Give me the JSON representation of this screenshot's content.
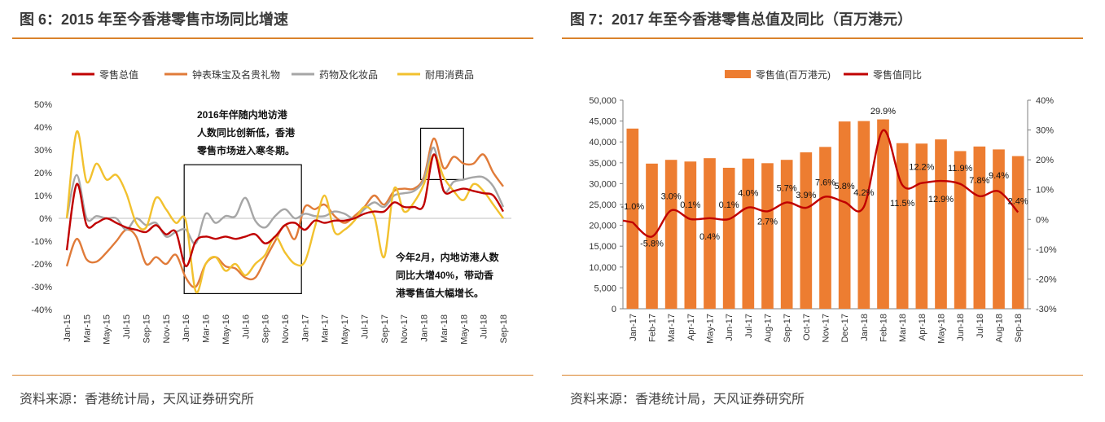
{
  "left": {
    "title": "图 6：2015 年至今香港零售市场同比增速",
    "source": "资料来源：香港统计局，天风证券研究所",
    "chart_data": {
      "type": "line",
      "title": "",
      "x": [
        "Jan-15",
        "Feb-15",
        "Mar-15",
        "Apr-15",
        "May-15",
        "Jun-15",
        "Jul-15",
        "Aug-15",
        "Sep-15",
        "Oct-15",
        "Nov-15",
        "Dec-15",
        "Jan-16",
        "Feb-16",
        "Mar-16",
        "Apr-16",
        "May-16",
        "Jun-16",
        "Jul-16",
        "Aug-16",
        "Sep-16",
        "Oct-16",
        "Nov-16",
        "Dec-16",
        "Jan-17",
        "Feb-17",
        "Mar-17",
        "Apr-17",
        "May-17",
        "Jun-17",
        "Jul-17",
        "Aug-17",
        "Sep-17",
        "Oct-17",
        "Nov-17",
        "Dec-17",
        "Jan-18",
        "Feb-18",
        "Mar-18",
        "Apr-18",
        "May-18",
        "Jun-18",
        "Jul-18",
        "Aug-18",
        "Sep-18"
      ],
      "tick_labels": [
        "Jan-15",
        "Mar-15",
        "May-15",
        "Jul-15",
        "Sep-15",
        "Nov-15",
        "Jan-16",
        "Mar-16",
        "May-16",
        "Jul-16",
        "Sep-16",
        "Nov-16",
        "Jan-17",
        "Mar-17",
        "May-17",
        "Jul-17",
        "Sep-17",
        "Nov-17",
        "Jan-18",
        "Mar-18",
        "May-18",
        "Jul-18",
        "Sep-18"
      ],
      "y_ticks": [
        "50%",
        "40%",
        "30%",
        "20%",
        "10%",
        "0%",
        "-10%",
        "-20%",
        "-30%",
        "-40%"
      ],
      "ylim": [
        -40,
        50
      ],
      "series": [
        {
          "name": "零售总值",
          "color": "#c00000",
          "values": [
            -14,
            15,
            -3,
            -2,
            0,
            -2,
            -4,
            -5,
            -6,
            -3,
            -7,
            -6,
            -21,
            -10,
            -8,
            -9,
            -8,
            -9,
            -8,
            -7,
            -11,
            -8,
            -3,
            -2,
            -5,
            -1,
            -2,
            -1,
            -1,
            0,
            2,
            3,
            3,
            7,
            5,
            5,
            6,
            28,
            12,
            12,
            13,
            12,
            11,
            10,
            3
          ]
        },
        {
          "name": "钟表珠宝及名贵礼物",
          "color": "#e07b39",
          "values": [
            -21,
            -9,
            -18,
            -19,
            -15,
            -10,
            -5,
            -8,
            -20,
            -17,
            -20,
            -16,
            -26,
            -30,
            -20,
            -17,
            -21,
            -22,
            -26,
            -26,
            -18,
            -10,
            -3,
            -9,
            5,
            4,
            6,
            1,
            -2,
            1,
            5,
            10,
            6,
            12,
            13,
            13,
            18,
            35,
            22,
            27,
            24,
            24,
            28,
            20,
            14
          ]
        },
        {
          "name": "药物及化妆品",
          "color": "#a6a6a6",
          "values": [
            0,
            19,
            0,
            1,
            0,
            0,
            -5,
            0,
            -3,
            -2,
            -8,
            -6,
            -5,
            -11,
            2,
            -2,
            1,
            1,
            9,
            -1,
            -4,
            1,
            4,
            0,
            2,
            1,
            1,
            3,
            2,
            0,
            4,
            7,
            5,
            10,
            11,
            12,
            17,
            31,
            12,
            16,
            17,
            18,
            18,
            14,
            5
          ]
        },
        {
          "name": "耐用消费品",
          "color": "#f2c12e",
          "values": [
            0,
            38,
            16,
            24,
            17,
            19,
            11,
            -2,
            -4,
            9,
            4,
            -2,
            -1,
            -32,
            -20,
            -17,
            -23,
            -20,
            -25,
            -20,
            -16,
            -8,
            -15,
            -20,
            -19,
            -4,
            10,
            -6,
            -5,
            -1,
            5,
            1,
            -17,
            13,
            3,
            7,
            15,
            28,
            18,
            12,
            8,
            15,
            12,
            6,
            0
          ]
        }
      ],
      "annotations": [
        "2016年伴随内地访港人数同比创新低，香港零售市场进入寒冬期。",
        "今年2月，内地访港人数同比大增40%，带动香港零售值大幅增长。"
      ],
      "annotation_lines": {
        "a1": [
          "2016年伴随内地访港",
          "人数同比创新低，香港",
          "零售市场进入寒冬期。"
        ],
        "a2": [
          "今年2月，内地访港人数",
          "同比大增40%，带动香",
          "港零售值大幅增长。"
        ]
      },
      "legend": "top"
    }
  },
  "right": {
    "title": "图 7：2017 年至今香港零售总值及同比（百万港元）",
    "source": "资料来源：香港统计局，天风证券研究所",
    "chart_data": {
      "type": "bar",
      "categories": [
        "Jan-17",
        "Feb-17",
        "Mar-17",
        "Apr-17",
        "May-17",
        "Jun-17",
        "Jul-17",
        "Aug-17",
        "Sep-17",
        "Oct-17",
        "Nov-17",
        "Dec-17",
        "Jan-18",
        "Feb-18",
        "Mar-18",
        "Apr-18",
        "May-18",
        "Jun-18",
        "Jul-18",
        "Aug-18",
        "Sep-18"
      ],
      "series": [
        {
          "name": "零售值(百万港元)",
          "color": "#ed7d31",
          "type": "bar",
          "axis": "left",
          "values": [
            43200,
            34800,
            35700,
            35300,
            36100,
            33800,
            36000,
            34900,
            35700,
            37500,
            38800,
            44900,
            45000,
            45400,
            39700,
            39600,
            40600,
            37800,
            38900,
            38200,
            36600
          ]
        },
        {
          "name": "零售值同比",
          "color": "#c00000",
          "type": "line",
          "axis": "right",
          "values": [
            -1.0,
            -5.8,
            3.0,
            0.1,
            0.4,
            0.1,
            4.0,
            2.7,
            5.7,
            3.9,
            7.6,
            5.8,
            4.2,
            29.9,
            11.5,
            12.2,
            12.9,
            11.9,
            7.8,
            9.4,
            2.4
          ]
        }
      ],
      "data_labels": [
        "-1.0%",
        "-5.8%",
        "3.0%",
        "0.1%",
        "0.4%",
        "0.1%",
        "4.0%",
        "2.7%",
        "5.7%",
        "3.9%",
        "7.6%",
        "5.8%",
        "4.2%",
        "29.9%",
        "11.5%",
        "12.2%",
        "12.9%",
        "11.9%",
        "7.8%",
        "9.4%",
        "2.4%"
      ],
      "y_left_ticks": [
        "50,000",
        "45,000",
        "40,000",
        "35,000",
        "30,000",
        "25,000",
        "20,000",
        "15,000",
        "10,000",
        "5,000",
        "0"
      ],
      "y_right_ticks": [
        "40%",
        "30%",
        "20%",
        "10%",
        "0%",
        "-10%",
        "-20%",
        "-30%"
      ],
      "ylim_left": [
        0,
        50000
      ],
      "ylim_right": [
        -30,
        40
      ],
      "legend": "top"
    }
  }
}
